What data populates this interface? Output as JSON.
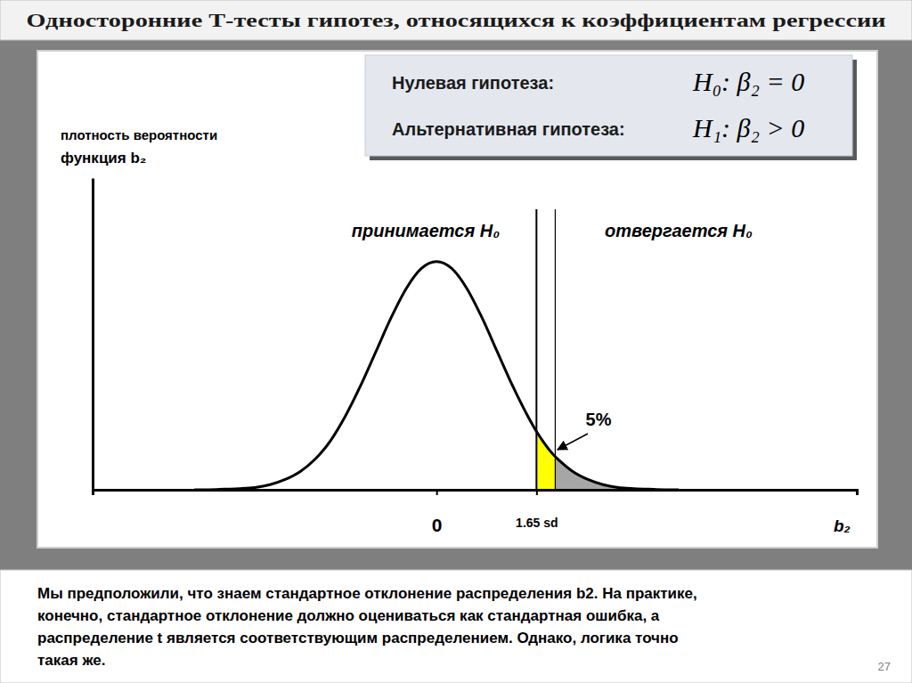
{
  "slide": {
    "title": "Односторонние Т-тесты гипотез, относящихся к коэффициентам регрессии",
    "hypotheses": [
      {
        "label": "Нулевая гипотеза:",
        "formula": "H₀: β₂ = 0"
      },
      {
        "label": "Альтернативная гипотеза:",
        "formula": "H₁: β₂ > 0"
      }
    ],
    "note": [
      "Мы предположили, что знаем стандартное отклонение распределения b2.  На практике,",
      "конечно, стандартное отклонение должно оцениваться как стандартная ошибка, а",
      "распределение t является соответствующим распределением.  Однако, логика точно",
      "такая же."
    ],
    "page": 27
  },
  "chart_data": {
    "type": "line",
    "ylabel": [
      "плотность вероятности",
      "функция b₂"
    ],
    "xlabel": "b₂",
    "x": [
      -4,
      -3.75,
      -3.5,
      -3.25,
      -3,
      -2.75,
      -2.5,
      -2.25,
      -2,
      -1.75,
      -1.5,
      -1.25,
      -1,
      -0.75,
      -0.5,
      -0.25,
      0,
      0.25,
      0.5,
      0.75,
      1,
      1.25,
      1.5,
      1.65,
      1.75,
      1.96,
      2,
      2.25,
      2.5,
      2.75,
      3,
      3.25,
      3.5,
      3.75,
      4
    ],
    "values": [
      0,
      0,
      0.001,
      0.002,
      0.004,
      0.009,
      0.018,
      0.032,
      0.054,
      0.086,
      0.13,
      0.183,
      0.242,
      0.301,
      0.352,
      0.387,
      0.399,
      0.387,
      0.352,
      0.301,
      0.242,
      0.183,
      0.13,
      0.102,
      0.086,
      0.058,
      0.054,
      0.032,
      0.018,
      0.009,
      0.004,
      0.002,
      0.001,
      0,
      0
    ],
    "color": "#000000",
    "xlim": [
      -5.68,
      6.94
    ],
    "ylim": [
      0,
      0.545
    ],
    "xticks": [
      0,
      {
        "value": 1.65,
        "label": "1.65 sd"
      }
    ],
    "tick_labels": "x",
    "regions": [
      {
        "from": 1.65,
        "to": 1.96,
        "color": "#ffff00"
      },
      {
        "from": 1.96,
        "to": 4,
        "color": "#a6a6a6"
      }
    ],
    "vlines": [
      1.65,
      1.96
    ],
    "annotations": [
      "принимается H₀",
      "отвергается H₀",
      "5%"
    ]
  }
}
